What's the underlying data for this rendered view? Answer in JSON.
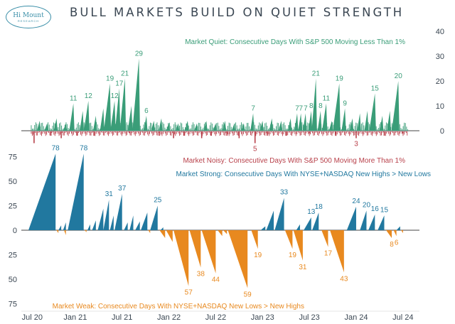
{
  "title": "BULL MARKETS BUILD ON QUIET STRENGTH",
  "logo": {
    "brand": "Hi Mount",
    "sub": "RESEARCH"
  },
  "colors": {
    "quiet": "#3a9d78",
    "noisy": "#b8404a",
    "strong": "#21789f",
    "weak": "#e8891f",
    "text": "#3a4652",
    "axis": "#444444"
  },
  "chart_data": [
    {
      "type": "bar",
      "title": "Market Quiet / Market Noisy",
      "ylim": [
        -6,
        40
      ],
      "yticks": [
        0,
        10,
        20,
        30,
        40
      ],
      "x_range": [
        2020.5,
        2024.6
      ],
      "series": [
        {
          "name": "Market Quiet: Consecutive Days With S&P 500 Moving Less Than 1%",
          "color": "#3a9d78",
          "peaks": [
            {
              "x": 2020.62,
              "y": 4
            },
            {
              "x": 2020.7,
              "y": 3
            },
            {
              "x": 2020.8,
              "y": 5
            },
            {
              "x": 2020.9,
              "y": 3
            },
            {
              "x": 2020.98,
              "y": 11
            },
            {
              "x": 2021.08,
              "y": 8
            },
            {
              "x": 2021.14,
              "y": 12
            },
            {
              "x": 2021.22,
              "y": 6
            },
            {
              "x": 2021.3,
              "y": 9
            },
            {
              "x": 2021.37,
              "y": 19
            },
            {
              "x": 2021.42,
              "y": 12
            },
            {
              "x": 2021.47,
              "y": 17
            },
            {
              "x": 2021.53,
              "y": 21
            },
            {
              "x": 2021.6,
              "y": 10
            },
            {
              "x": 2021.68,
              "y": 29
            },
            {
              "x": 2021.76,
              "y": 6
            },
            {
              "x": 2021.84,
              "y": 4
            },
            {
              "x": 2021.92,
              "y": 5
            },
            {
              "x": 2022.0,
              "y": 3
            },
            {
              "x": 2022.1,
              "y": 3
            },
            {
              "x": 2022.2,
              "y": 4
            },
            {
              "x": 2022.3,
              "y": 3
            },
            {
              "x": 2022.4,
              "y": 4
            },
            {
              "x": 2022.5,
              "y": 3
            },
            {
              "x": 2022.6,
              "y": 4
            },
            {
              "x": 2022.7,
              "y": 3
            },
            {
              "x": 2022.8,
              "y": 3
            },
            {
              "x": 2022.9,
              "y": 7
            },
            {
              "x": 2023.0,
              "y": 4
            },
            {
              "x": 2023.1,
              "y": 5
            },
            {
              "x": 2023.2,
              "y": 4
            },
            {
              "x": 2023.3,
              "y": 5
            },
            {
              "x": 2023.37,
              "y": 7
            },
            {
              "x": 2023.41,
              "y": 7
            },
            {
              "x": 2023.46,
              "y": 7
            },
            {
              "x": 2023.52,
              "y": 8
            },
            {
              "x": 2023.57,
              "y": 21
            },
            {
              "x": 2023.62,
              "y": 8
            },
            {
              "x": 2023.68,
              "y": 11
            },
            {
              "x": 2023.74,
              "y": 4
            },
            {
              "x": 2023.82,
              "y": 19
            },
            {
              "x": 2023.88,
              "y": 9
            },
            {
              "x": 2023.96,
              "y": 5
            },
            {
              "x": 2024.04,
              "y": 7
            },
            {
              "x": 2024.12,
              "y": 8
            },
            {
              "x": 2024.2,
              "y": 15
            },
            {
              "x": 2024.28,
              "y": 6
            },
            {
              "x": 2024.36,
              "y": 8
            },
            {
              "x": 2024.45,
              "y": 20
            }
          ]
        },
        {
          "name": "Market Noisy: Consecutive Days With S&P 500 Moving More Than 1%",
          "color": "#b8404a",
          "peaks": [
            {
              "x": 2020.56,
              "y": -5
            },
            {
              "x": 2020.74,
              "y": -2
            },
            {
              "x": 2020.85,
              "y": -3
            },
            {
              "x": 2021.02,
              "y": -2
            },
            {
              "x": 2021.2,
              "y": -2
            },
            {
              "x": 2021.58,
              "y": -1
            },
            {
              "x": 2021.9,
              "y": -2
            },
            {
              "x": 2022.05,
              "y": -3
            },
            {
              "x": 2022.16,
              "y": -2
            },
            {
              "x": 2022.35,
              "y": -3
            },
            {
              "x": 2022.45,
              "y": -2
            },
            {
              "x": 2022.62,
              "y": -2
            },
            {
              "x": 2022.75,
              "y": -3
            },
            {
              "x": 2022.92,
              "y": -5
            },
            {
              "x": 2023.05,
              "y": -2
            },
            {
              "x": 2023.25,
              "y": -2
            },
            {
              "x": 2023.5,
              "y": -1
            },
            {
              "x": 2023.78,
              "y": -2
            },
            {
              "x": 2024.0,
              "y": -3
            },
            {
              "x": 2024.3,
              "y": -2
            },
            {
              "x": 2024.5,
              "y": -1
            }
          ]
        }
      ],
      "annotations": [
        {
          "x": 2020.98,
          "y": 11,
          "text": "11",
          "series": "quiet"
        },
        {
          "x": 2021.14,
          "y": 12,
          "text": "12",
          "series": "quiet"
        },
        {
          "x": 2021.37,
          "y": 19,
          "text": "19",
          "series": "quiet"
        },
        {
          "x": 2021.42,
          "y": 12,
          "text": "12",
          "series": "quiet"
        },
        {
          "x": 2021.47,
          "y": 17,
          "text": "17",
          "series": "quiet"
        },
        {
          "x": 2021.53,
          "y": 21,
          "text": "21",
          "series": "quiet"
        },
        {
          "x": 2021.68,
          "y": 29,
          "text": "29",
          "series": "quiet"
        },
        {
          "x": 2021.76,
          "y": 6,
          "text": "6",
          "series": "quiet"
        },
        {
          "x": 2022.9,
          "y": 7,
          "text": "7",
          "series": "quiet"
        },
        {
          "x": 2022.92,
          "y": -5,
          "text": "5",
          "series": "noisy"
        },
        {
          "x": 2023.37,
          "y": 7,
          "text": "7",
          "series": "quiet"
        },
        {
          "x": 2023.41,
          "y": 7,
          "text": "7",
          "series": "quiet"
        },
        {
          "x": 2023.46,
          "y": 7,
          "text": "7",
          "series": "quiet"
        },
        {
          "x": 2023.52,
          "y": 8,
          "text": "8",
          "series": "quiet"
        },
        {
          "x": 2023.57,
          "y": 21,
          "text": "21",
          "series": "quiet"
        },
        {
          "x": 2023.62,
          "y": 8,
          "text": "8",
          "series": "quiet"
        },
        {
          "x": 2023.68,
          "y": 11,
          "text": "11",
          "series": "quiet"
        },
        {
          "x": 2023.82,
          "y": 19,
          "text": "19",
          "series": "quiet"
        },
        {
          "x": 2023.88,
          "y": 9,
          "text": "9",
          "series": "quiet"
        },
        {
          "x": 2024.0,
          "y": -3,
          "text": "3",
          "series": "noisy"
        },
        {
          "x": 2024.2,
          "y": 15,
          "text": "15",
          "series": "quiet"
        },
        {
          "x": 2024.45,
          "y": 20,
          "text": "20",
          "series": "quiet"
        }
      ]
    },
    {
      "type": "area",
      "title": "Market Strong / Market Weak",
      "ylim": [
        -75,
        85
      ],
      "yticks": [
        75,
        50,
        25,
        0,
        -25,
        -50,
        -75
      ],
      "ytick_labels": [
        "75",
        "50",
        "25",
        "0",
        "25",
        "50",
        "75"
      ],
      "x_range": [
        2020.5,
        2024.6
      ],
      "xticks": [
        {
          "x": 2020.54,
          "label": "Jul 20"
        },
        {
          "x": 2021.0,
          "label": "Jan 21"
        },
        {
          "x": 2021.5,
          "label": "Jul 21"
        },
        {
          "x": 2022.0,
          "label": "Jan 22"
        },
        {
          "x": 2022.5,
          "label": "Jul 22"
        },
        {
          "x": 2023.0,
          "label": "Jan 23"
        },
        {
          "x": 2023.5,
          "label": "Jul 23"
        },
        {
          "x": 2024.0,
          "label": "Jan 24"
        },
        {
          "x": 2024.5,
          "label": "Jul 24"
        }
      ],
      "series": [
        {
          "name": "Market Strong: Consecutive Days With NYSE+NASDAQ New Highs > New Lows",
          "color": "#21789f",
          "runs": [
            {
              "start": 2020.5,
              "end": 2020.79,
              "peak": 78
            },
            {
              "start": 2020.82,
              "end": 2020.85,
              "peak": 5
            },
            {
              "start": 2020.87,
              "end": 2020.9,
              "peak": 8
            },
            {
              "start": 2020.92,
              "end": 2021.09,
              "peak": 78
            },
            {
              "start": 2021.13,
              "end": 2021.16,
              "peak": 6
            },
            {
              "start": 2021.18,
              "end": 2021.22,
              "peak": 10
            },
            {
              "start": 2021.24,
              "end": 2021.3,
              "peak": 22
            },
            {
              "start": 2021.3,
              "end": 2021.36,
              "peak": 31
            },
            {
              "start": 2021.37,
              "end": 2021.41,
              "peak": 15
            },
            {
              "start": 2021.42,
              "end": 2021.5,
              "peak": 37
            },
            {
              "start": 2021.52,
              "end": 2021.56,
              "peak": 8
            },
            {
              "start": 2021.58,
              "end": 2021.62,
              "peak": 15
            },
            {
              "start": 2021.64,
              "end": 2021.69,
              "peak": 9
            },
            {
              "start": 2021.7,
              "end": 2021.77,
              "peak": 18
            },
            {
              "start": 2021.8,
              "end": 2021.88,
              "peak": 25
            },
            {
              "start": 2021.91,
              "end": 2021.94,
              "peak": 3
            },
            {
              "start": 2022.98,
              "end": 2023.03,
              "peak": 4
            },
            {
              "start": 2023.04,
              "end": 2023.12,
              "peak": 20
            },
            {
              "start": 2023.13,
              "end": 2023.23,
              "peak": 33
            },
            {
              "start": 2023.36,
              "end": 2023.4,
              "peak": 6
            },
            {
              "start": 2023.44,
              "end": 2023.52,
              "peak": 13
            },
            {
              "start": 2023.53,
              "end": 2023.6,
              "peak": 18
            },
            {
              "start": 2023.9,
              "end": 2024.0,
              "peak": 24
            },
            {
              "start": 2024.04,
              "end": 2024.11,
              "peak": 20
            },
            {
              "start": 2024.13,
              "end": 2024.2,
              "peak": 16
            },
            {
              "start": 2024.23,
              "end": 2024.3,
              "peak": 15
            },
            {
              "start": 2024.43,
              "end": 2024.47,
              "peak": 4
            }
          ]
        },
        {
          "name": "Market Weak: Consecutive Days With NYSE+NASDAQ New Lows > New Highs",
          "color": "#e8891f",
          "runs": [
            {
              "start": 2020.8,
              "end": 2020.82,
              "peak": -3
            },
            {
              "start": 2020.88,
              "end": 2020.9,
              "peak": -5
            },
            {
              "start": 2021.1,
              "end": 2021.12,
              "peak": -2
            },
            {
              "start": 2021.78,
              "end": 2021.8,
              "peak": -3
            },
            {
              "start": 2021.9,
              "end": 2021.96,
              "peak": -8
            },
            {
              "start": 2021.97,
              "end": 2022.04,
              "peak": -12
            },
            {
              "start": 2022.05,
              "end": 2022.21,
              "peak": -57
            },
            {
              "start": 2022.22,
              "end": 2022.34,
              "peak": -38
            },
            {
              "start": 2022.35,
              "end": 2022.5,
              "peak": -44
            },
            {
              "start": 2022.52,
              "end": 2022.57,
              "peak": -6
            },
            {
              "start": 2022.58,
              "end": 2022.62,
              "peak": -4
            },
            {
              "start": 2022.63,
              "end": 2022.84,
              "peak": -59
            },
            {
              "start": 2022.88,
              "end": 2022.95,
              "peak": -19
            },
            {
              "start": 2023.24,
              "end": 2023.32,
              "peak": -19
            },
            {
              "start": 2023.33,
              "end": 2023.43,
              "peak": -31
            },
            {
              "start": 2023.63,
              "end": 2023.7,
              "peak": -17
            },
            {
              "start": 2023.72,
              "end": 2023.87,
              "peak": -43
            },
            {
              "start": 2024.32,
              "end": 2024.38,
              "peak": -8
            },
            {
              "start": 2024.4,
              "end": 2024.43,
              "peak": -6
            },
            {
              "start": 2024.48,
              "end": 2024.5,
              "peak": -3
            }
          ]
        }
      ],
      "annotations": [
        {
          "x": 2020.79,
          "y": 78,
          "text": "78",
          "series": "strong"
        },
        {
          "x": 2021.09,
          "y": 78,
          "text": "78",
          "series": "strong"
        },
        {
          "x": 2021.36,
          "y": 31,
          "text": "31",
          "series": "strong"
        },
        {
          "x": 2021.5,
          "y": 37,
          "text": "37",
          "series": "strong"
        },
        {
          "x": 2021.88,
          "y": 25,
          "text": "25",
          "series": "strong"
        },
        {
          "x": 2022.21,
          "y": -57,
          "text": "57",
          "series": "weak"
        },
        {
          "x": 2022.34,
          "y": -38,
          "text": "38",
          "series": "weak"
        },
        {
          "x": 2022.5,
          "y": -44,
          "text": "44",
          "series": "weak"
        },
        {
          "x": 2022.84,
          "y": -59,
          "text": "59",
          "series": "weak"
        },
        {
          "x": 2022.95,
          "y": -19,
          "text": "19",
          "series": "weak"
        },
        {
          "x": 2023.23,
          "y": 33,
          "text": "33",
          "series": "strong"
        },
        {
          "x": 2023.32,
          "y": -19,
          "text": "19",
          "series": "weak"
        },
        {
          "x": 2023.43,
          "y": -31,
          "text": "31",
          "series": "weak"
        },
        {
          "x": 2023.52,
          "y": 13,
          "text": "13",
          "series": "strong"
        },
        {
          "x": 2023.6,
          "y": 18,
          "text": "18",
          "series": "strong"
        },
        {
          "x": 2023.7,
          "y": -17,
          "text": "17",
          "series": "weak"
        },
        {
          "x": 2023.87,
          "y": -43,
          "text": "43",
          "series": "weak"
        },
        {
          "x": 2024.0,
          "y": 24,
          "text": "24",
          "series": "strong"
        },
        {
          "x": 2024.11,
          "y": 20,
          "text": "20",
          "series": "strong"
        },
        {
          "x": 2024.2,
          "y": 16,
          "text": "16",
          "series": "strong"
        },
        {
          "x": 2024.3,
          "y": 15,
          "text": "15",
          "series": "strong"
        },
        {
          "x": 2024.38,
          "y": -8,
          "text": "8",
          "series": "weak"
        },
        {
          "x": 2024.43,
          "y": -6,
          "text": "6",
          "series": "weak"
        }
      ]
    }
  ]
}
